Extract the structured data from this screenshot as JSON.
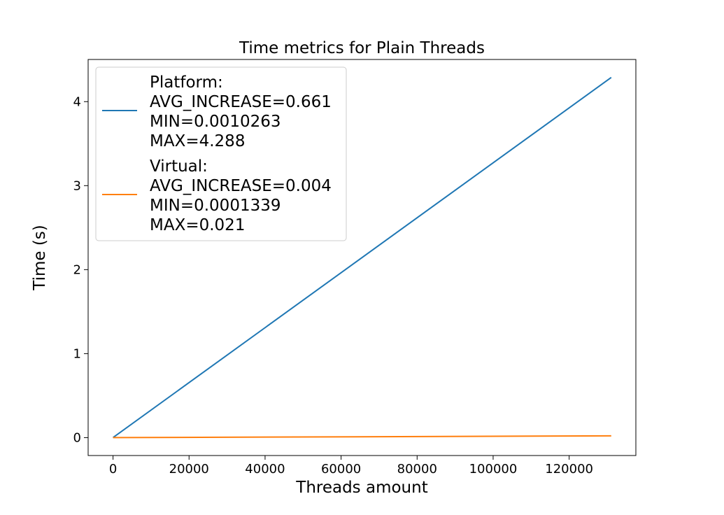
{
  "chart_data": {
    "type": "line",
    "title": "Time metrics for Plain Threads",
    "xlabel": "Threads amount",
    "ylabel": "Time (s)",
    "xlim": [
      -6550,
      137550
    ],
    "ylim": [
      -0.213,
      4.502
    ],
    "xticks": [
      0,
      20000,
      40000,
      60000,
      80000,
      100000,
      120000
    ],
    "xtick_labels": [
      "0",
      "20000",
      "40000",
      "60000",
      "80000",
      "100000",
      "120000"
    ],
    "yticks": [
      0,
      1,
      2,
      3,
      4
    ],
    "ytick_labels": [
      "0",
      "1",
      "2",
      "3",
      "4"
    ],
    "grid": false,
    "legend_placement": "upper-left",
    "series": [
      {
        "name": "Platform:\nAVG_INCREASE=0.661\nMIN=0.0010263\nMAX=4.288",
        "color": "#1f77b4",
        "x": [
          0,
          131072
        ],
        "y": [
          0.0010263,
          4.288
        ]
      },
      {
        "name": "Virtual:\nAVG_INCREASE=0.004\nMIN=0.0001339\nMAX=0.021",
        "color": "#ff7f0e",
        "x": [
          0,
          131072
        ],
        "y": [
          0.0001339,
          0.021
        ]
      }
    ]
  }
}
